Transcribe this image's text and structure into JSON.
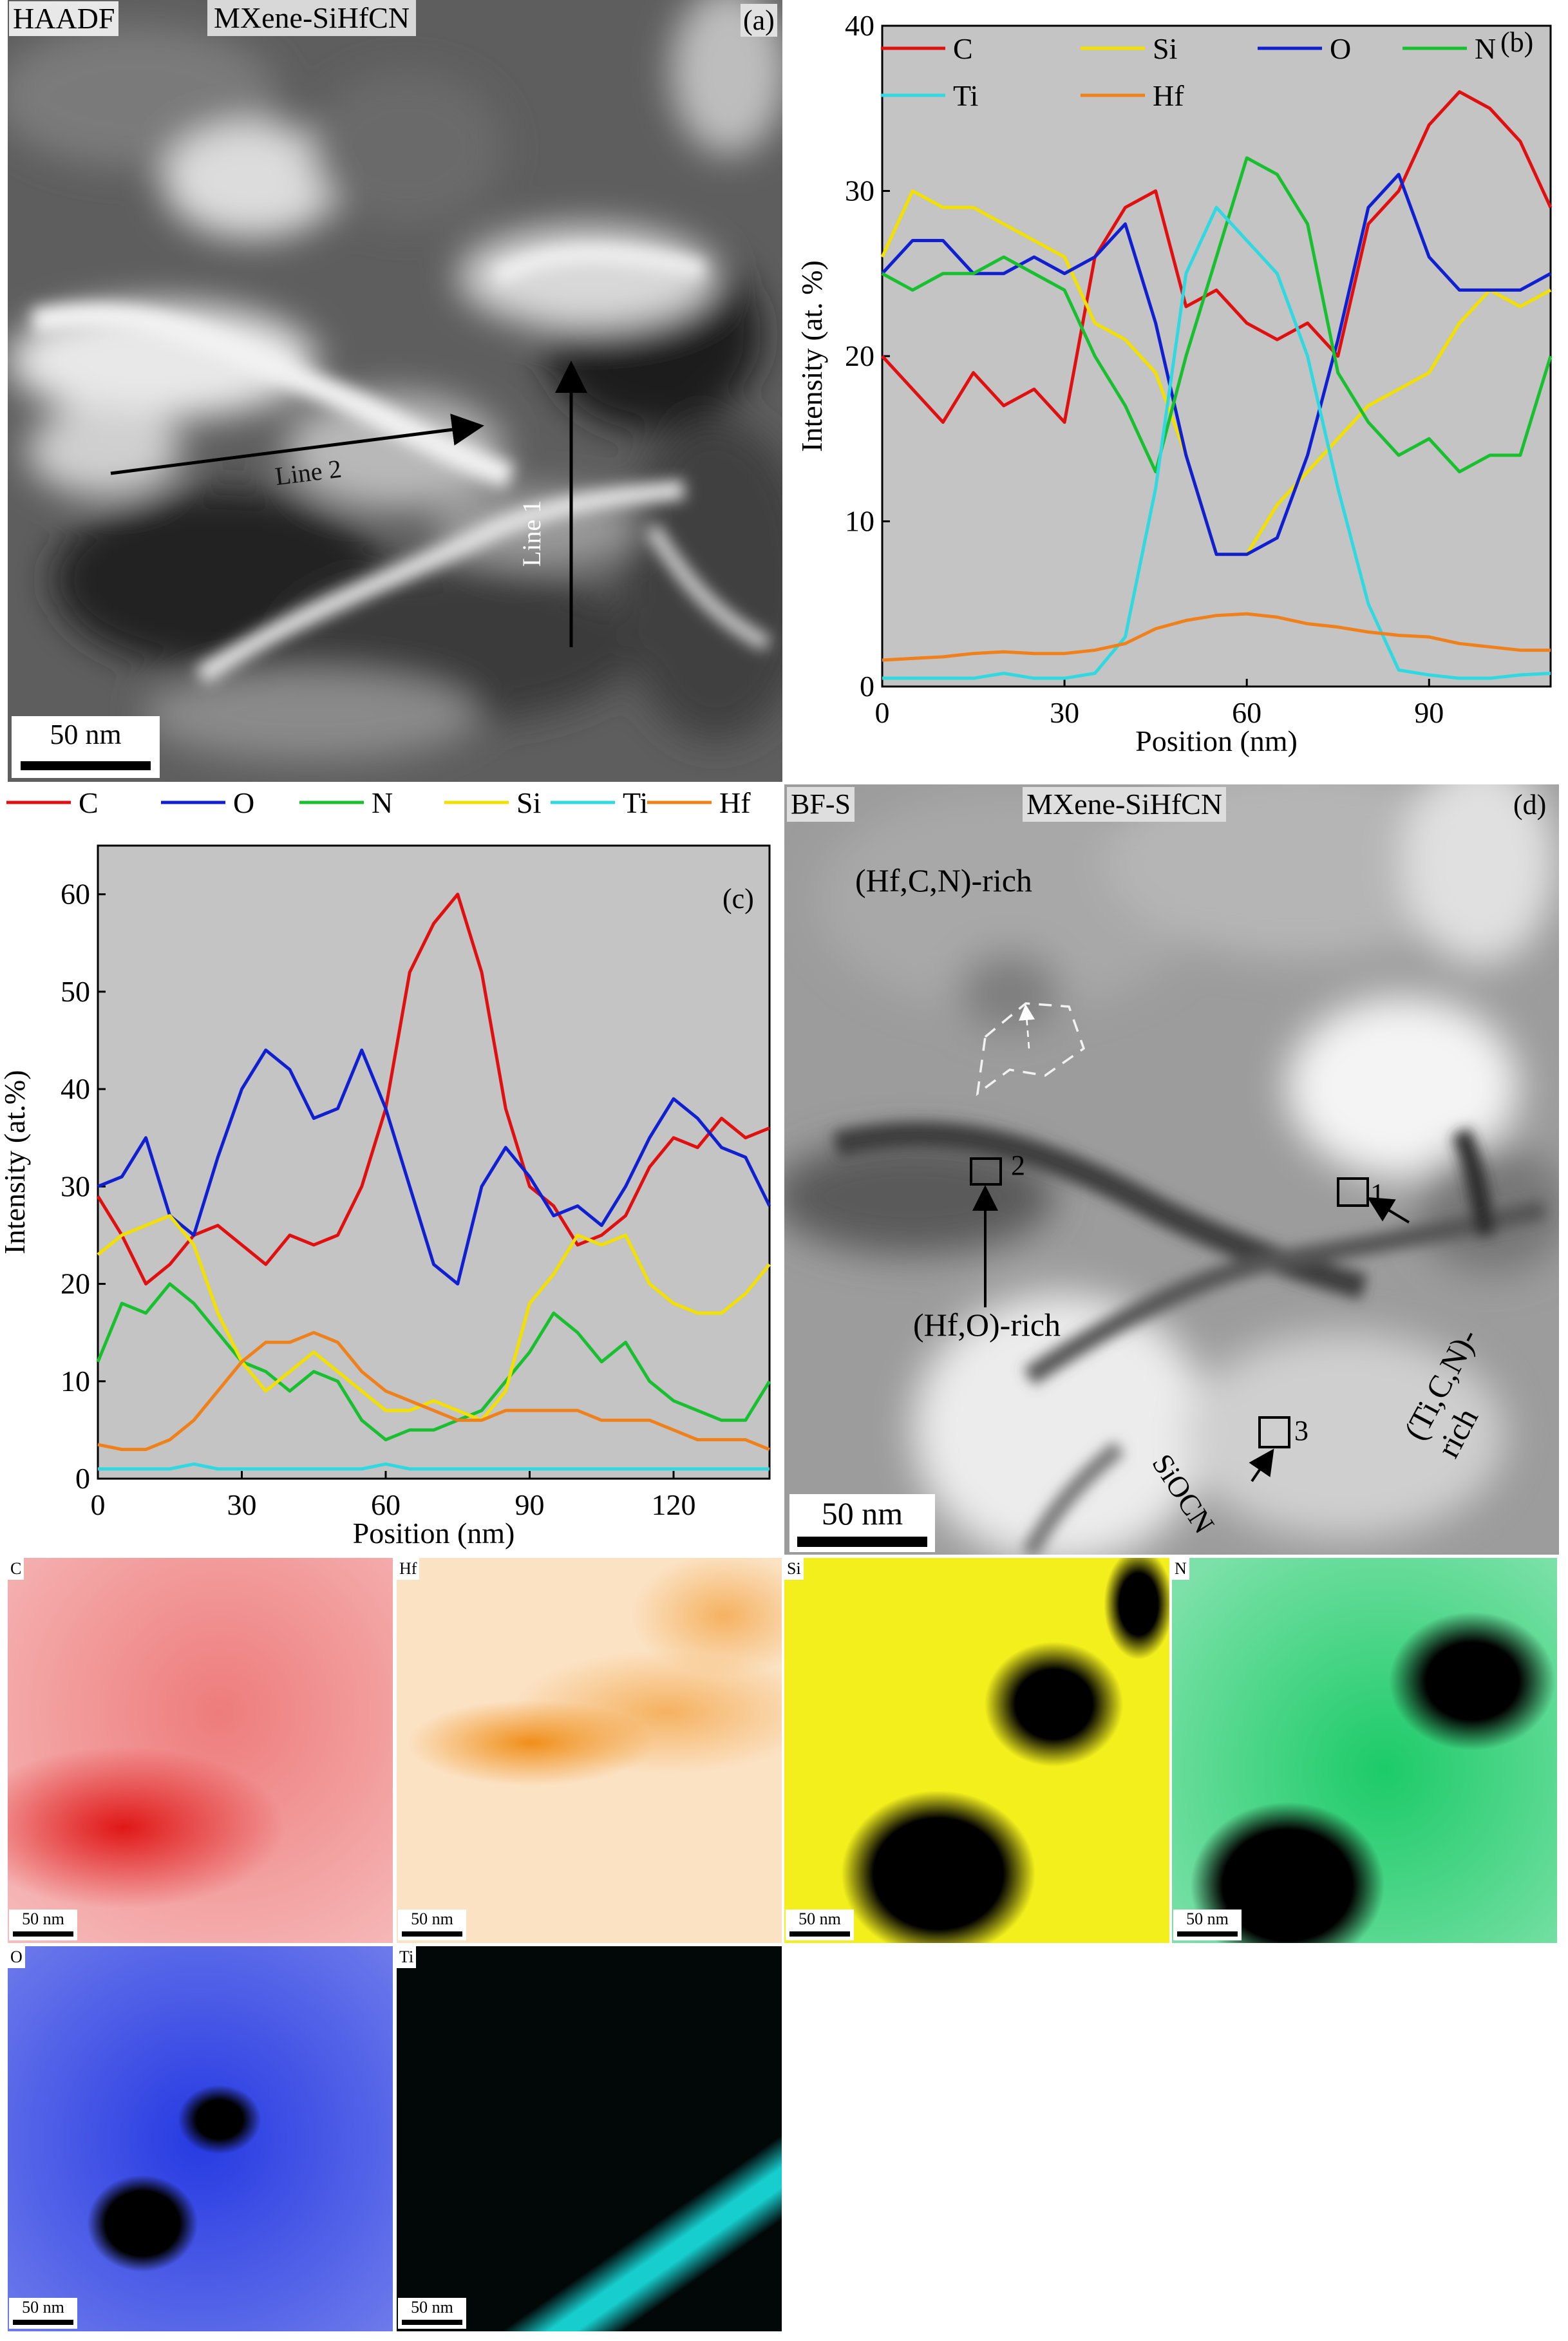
{
  "panel_a": {
    "mode": "HAADF",
    "sample": "MXene-SiHfCN",
    "tag": "(a)",
    "line1": "Line 1",
    "line2": "Line 2",
    "scale": "50 nm"
  },
  "panel_d": {
    "mode": "BF-S",
    "sample": "MXene-SiHfCN",
    "tag": "(d)",
    "region_hfcn": "(Hf,C,N)-rich",
    "region_hfo": "(Hf,O)-rich",
    "region_ticn": "(Ti,C,N)-rich",
    "region_siocn": "SiOCN",
    "box1": "1",
    "box2": "2",
    "box3": "3",
    "scale": "50 nm"
  },
  "maps": [
    {
      "element": "C",
      "scale": "50 nm",
      "color": "#e01010"
    },
    {
      "element": "Hf",
      "scale": "50 nm",
      "color": "#f08a10"
    },
    {
      "element": "Si",
      "scale": "50 nm",
      "color": "#f2ee10"
    },
    {
      "element": "N",
      "scale": "50 nm",
      "color": "#10c860"
    },
    {
      "element": "O",
      "scale": "50 nm",
      "color": "#1a2fe0"
    },
    {
      "element": "Ti",
      "scale": "50 nm",
      "color": "#18d8d8"
    }
  ],
  "chart_data": [
    {
      "panel": "(b)",
      "type": "line",
      "xlabel": "Position (nm)",
      "ylabel": "Intensity (at. %)",
      "xlim": [
        0,
        110
      ],
      "ylim": [
        0,
        40
      ],
      "xticks": [
        0,
        30,
        60,
        90
      ],
      "yticks": [
        0,
        10,
        20,
        30,
        40
      ],
      "legend_position": "top",
      "x": [
        0,
        5,
        10,
        15,
        20,
        25,
        30,
        35,
        40,
        45,
        50,
        55,
        60,
        65,
        70,
        75,
        80,
        85,
        90,
        95,
        100,
        105,
        110
      ],
      "series": [
        {
          "name": "C",
          "color": "#e01010",
          "values": [
            20,
            18,
            16,
            19,
            17,
            18,
            16,
            26,
            29,
            30,
            23,
            24,
            22,
            21,
            22,
            20,
            28,
            30,
            34,
            36,
            35,
            33,
            29
          ]
        },
        {
          "name": "Si",
          "color": "#f2e000",
          "values": [
            26,
            30,
            29,
            29,
            28,
            27,
            26,
            22,
            21,
            19,
            14,
            8,
            8,
            11,
            13,
            15,
            17,
            18,
            19,
            22,
            24,
            23,
            24
          ]
        },
        {
          "name": "O",
          "color": "#1020d0",
          "values": [
            25,
            27,
            27,
            25,
            25,
            26,
            25,
            26,
            28,
            22,
            14,
            8,
            8,
            9,
            14,
            21,
            29,
            31,
            26,
            24,
            24,
            24,
            25
          ]
        },
        {
          "name": "N",
          "color": "#18c030",
          "values": [
            25,
            24,
            25,
            25,
            26,
            25,
            24,
            20,
            17,
            13,
            20,
            26,
            32,
            31,
            28,
            19,
            16,
            14,
            15,
            13,
            14,
            14,
            20
          ]
        },
        {
          "name": "Ti",
          "color": "#30d8e0",
          "values": [
            0.5,
            0.5,
            0.5,
            0.5,
            0.8,
            0.5,
            0.5,
            0.8,
            3,
            12,
            25,
            29,
            27,
            25,
            20,
            12,
            5,
            1,
            0.7,
            0.5,
            0.5,
            0.7,
            0.8
          ]
        },
        {
          "name": "Hf",
          "color": "#f0801a",
          "values": [
            1.6,
            1.7,
            1.8,
            2,
            2.1,
            2,
            2,
            2.2,
            2.6,
            3.5,
            4,
            4.3,
            4.4,
            4.2,
            3.8,
            3.6,
            3.3,
            3.1,
            3,
            2.6,
            2.4,
            2.2,
            2.2
          ]
        }
      ]
    },
    {
      "panel": "(c)",
      "type": "line",
      "xlabel": "Position (nm)",
      "ylabel": "Intensity (at.%)",
      "xlim": [
        0,
        140
      ],
      "ylim": [
        0,
        65
      ],
      "xticks": [
        0,
        30,
        60,
        90,
        120
      ],
      "yticks": [
        0,
        10,
        20,
        30,
        40,
        50,
        60
      ],
      "legend_position": "top",
      "x": [
        0,
        5,
        10,
        15,
        20,
        25,
        30,
        35,
        40,
        45,
        50,
        55,
        60,
        65,
        70,
        75,
        80,
        85,
        90,
        95,
        100,
        105,
        110,
        115,
        120,
        125,
        130,
        135,
        140
      ],
      "series": [
        {
          "name": "C",
          "color": "#e01010",
          "values": [
            29,
            25,
            20,
            22,
            25,
            26,
            24,
            22,
            25,
            24,
            25,
            30,
            38,
            52,
            57,
            60,
            52,
            38,
            30,
            28,
            24,
            25,
            27,
            32,
            35,
            34,
            37,
            35,
            36
          ]
        },
        {
          "name": "O",
          "color": "#1020d0",
          "values": [
            30,
            31,
            35,
            27,
            25,
            33,
            40,
            44,
            42,
            37,
            38,
            44,
            38,
            30,
            22,
            20,
            30,
            34,
            31,
            27,
            28,
            26,
            30,
            35,
            39,
            37,
            34,
            33,
            28
          ]
        },
        {
          "name": "N",
          "color": "#18c030",
          "values": [
            12,
            18,
            17,
            20,
            18,
            15,
            12,
            11,
            9,
            11,
            10,
            6,
            4,
            5,
            5,
            6,
            7,
            10,
            13,
            17,
            15,
            12,
            14,
            10,
            8,
            7,
            6,
            6,
            10
          ]
        },
        {
          "name": "Si",
          "color": "#f2e000",
          "values": [
            23,
            25,
            26,
            27,
            24,
            17,
            12,
            9,
            11,
            13,
            11,
            9,
            7,
            7,
            8,
            7,
            6,
            9,
            18,
            21,
            25,
            24,
            25,
            20,
            18,
            17,
            17,
            19,
            22
          ]
        },
        {
          "name": "Ti",
          "color": "#30d8e0",
          "values": [
            1,
            1,
            1,
            1,
            1.5,
            1,
            1,
            1,
            1,
            1,
            1,
            1,
            1.5,
            1,
            1,
            1,
            1,
            1,
            1,
            1,
            1,
            1,
            1,
            1,
            1,
            1,
            1,
            1,
            1
          ]
        },
        {
          "name": "Hf",
          "color": "#f0801a",
          "values": [
            3.5,
            3,
            3,
            4,
            6,
            9,
            12,
            14,
            14,
            15,
            14,
            11,
            9,
            8,
            7,
            6,
            6,
            7,
            7,
            7,
            7,
            6,
            6,
            6,
            5,
            4,
            4,
            4,
            3
          ]
        }
      ]
    }
  ]
}
